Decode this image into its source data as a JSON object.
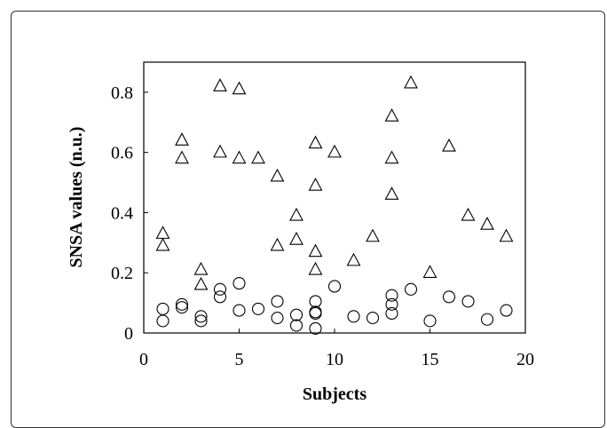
{
  "chart_data": {
    "type": "scatter",
    "title": "",
    "xlabel": "Subjects",
    "ylabel": "SNSA values (n.u.)",
    "xlim": [
      0,
      20
    ],
    "ylim": [
      0,
      0.9
    ],
    "x_ticks": [
      0,
      5,
      10,
      15,
      20
    ],
    "y_ticks": [
      0,
      0.2,
      0.4,
      0.6,
      0.8
    ],
    "x_tick_labels": [
      "0",
      "5",
      "10",
      "15",
      "20"
    ],
    "y_tick_labels": [
      "0",
      "0.2",
      "0.4",
      "0.6",
      "0.8"
    ],
    "grid": false,
    "legend": "none",
    "series": [
      {
        "marker": "triangle",
        "color": "#000000",
        "points": [
          [
            1,
            0.33
          ],
          [
            1,
            0.29
          ],
          [
            2,
            0.64
          ],
          [
            2,
            0.58
          ],
          [
            3,
            0.21
          ],
          [
            3,
            0.16
          ],
          [
            4,
            0.82
          ],
          [
            4,
            0.6
          ],
          [
            5,
            0.81
          ],
          [
            5,
            0.58
          ],
          [
            6,
            0.58
          ],
          [
            7,
            0.52
          ],
          [
            7,
            0.29
          ],
          [
            8,
            0.39
          ],
          [
            8,
            0.31
          ],
          [
            9,
            0.63
          ],
          [
            9,
            0.49
          ],
          [
            9,
            0.27
          ],
          [
            9,
            0.21
          ],
          [
            10,
            0.6
          ],
          [
            11,
            0.24
          ],
          [
            12,
            0.32
          ],
          [
            13,
            0.72
          ],
          [
            13,
            0.58
          ],
          [
            13,
            0.46
          ],
          [
            14,
            0.83
          ],
          [
            15,
            0.2
          ],
          [
            16,
            0.62
          ],
          [
            17,
            0.39
          ],
          [
            18,
            0.36
          ],
          [
            19,
            0.32
          ]
        ]
      },
      {
        "marker": "circle",
        "color": "#000000",
        "points": [
          [
            1,
            0.08
          ],
          [
            1,
            0.04
          ],
          [
            2,
            0.095
          ],
          [
            2,
            0.085
          ],
          [
            3,
            0.055
          ],
          [
            3,
            0.04
          ],
          [
            4,
            0.145
          ],
          [
            4,
            0.12
          ],
          [
            5,
            0.165
          ],
          [
            5,
            0.075
          ],
          [
            6,
            0.08
          ],
          [
            7,
            0.105
          ],
          [
            7,
            0.05
          ],
          [
            8,
            0.06
          ],
          [
            8,
            0.025
          ],
          [
            9,
            0.105
          ],
          [
            9,
            0.07
          ],
          [
            9,
            0.065
          ],
          [
            9,
            0.015
          ],
          [
            10,
            0.155
          ],
          [
            11,
            0.055
          ],
          [
            12,
            0.05
          ],
          [
            13,
            0.125
          ],
          [
            13,
            0.095
          ],
          [
            13,
            0.065
          ],
          [
            14,
            0.145
          ],
          [
            15,
            0.04
          ],
          [
            16,
            0.12
          ],
          [
            17,
            0.105
          ],
          [
            18,
            0.045
          ],
          [
            19,
            0.075
          ]
        ]
      }
    ]
  }
}
